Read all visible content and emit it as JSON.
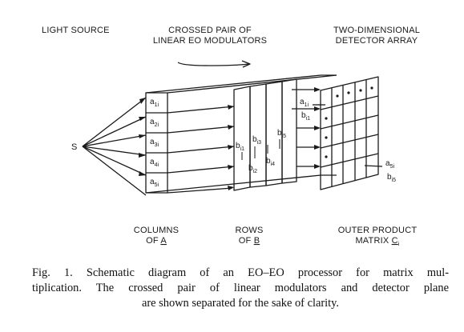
{
  "labels": {
    "light_source": "LIGHT SOURCE",
    "modulators_1": "CROSSED PAIR OF",
    "modulators_2": "LINEAR EO MODULATORS",
    "detector_1": "TWO-DIMENSIONAL",
    "detector_2": "DETECTOR ARRAY",
    "source": "S",
    "columns_1": "COLUMNS",
    "columns_2": "OF ",
    "columns_var": "A",
    "rows_1": "ROWS",
    "rows_2": "OF ",
    "rows_var": "B",
    "outer_1": "OUTER PRODUCT",
    "outer_2": "MATRIX ",
    "outer_var": "C",
    "outer_sub": "i"
  },
  "column_elements": [
    {
      "base": "a",
      "sub": "1i"
    },
    {
      "base": "a",
      "sub": "2i"
    },
    {
      "base": "a",
      "sub": "3i"
    },
    {
      "base": "a",
      "sub": "4i"
    },
    {
      "base": "a",
      "sub": "5i"
    }
  ],
  "row_elements": [
    {
      "base": "b",
      "sub": "i1"
    },
    {
      "base": "b",
      "sub": "i2"
    },
    {
      "base": "b",
      "sub": "i3"
    },
    {
      "base": "b",
      "sub": "i4"
    },
    {
      "base": "b",
      "sub": "i5"
    }
  ],
  "detector_labels": [
    {
      "base": "a",
      "sub": "1i"
    },
    {
      "base": "b",
      "sub": "i1"
    },
    {
      "base": "a",
      "sub": "5i"
    },
    {
      "base": "b",
      "sub": "i5"
    }
  ],
  "caption": {
    "line1": "Fig. 1.   Schematic diagram of an EO–EO processor for matrix mul-",
    "line2": "tiplication.  The crossed pair of linear modulators and detector plane",
    "line3": "are shown separated for the sake of clarity."
  }
}
